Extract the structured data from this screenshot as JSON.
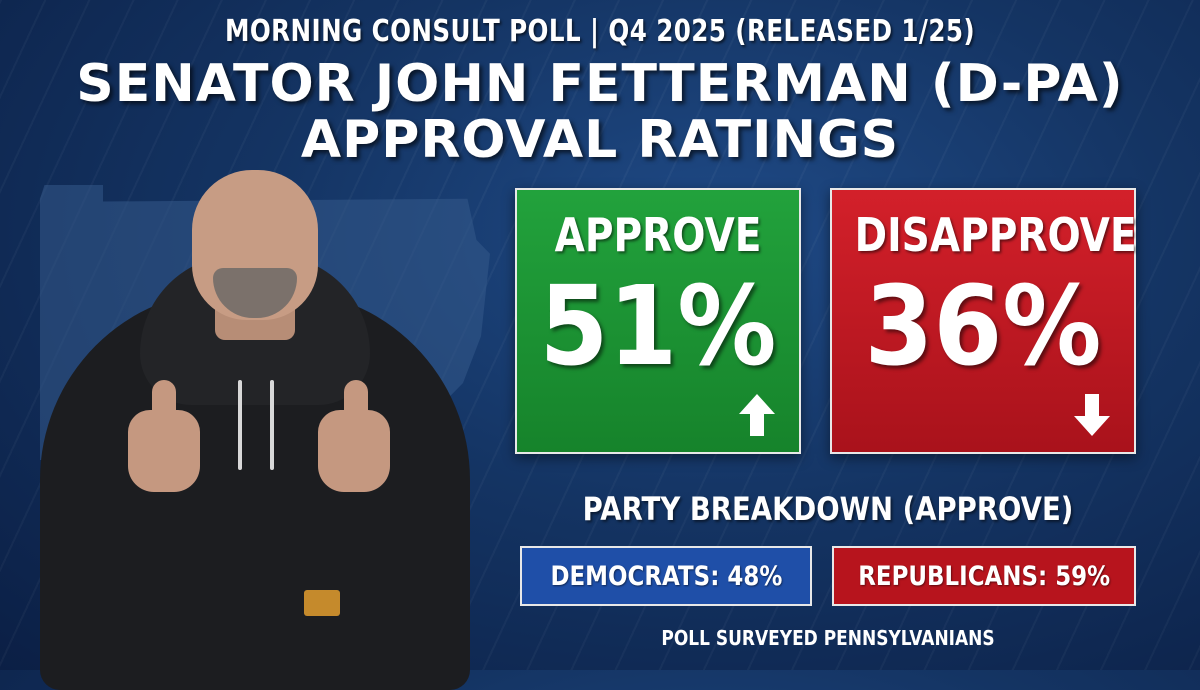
{
  "header": {
    "subtitle": "MORNING CONSULT POLL | Q4 2025 (RELEASED 1/25)",
    "title_line1": "SENATOR JOHN FETTERMAN (D-PA)",
    "title_line2": "APPROVAL RATINGS"
  },
  "approve": {
    "label": "APPROVE",
    "value": "51%",
    "trend": "up",
    "color": "#1b932f"
  },
  "disapprove": {
    "label": "DISAPPROVE",
    "value": "36%",
    "trend": "down",
    "color": "#c01a23"
  },
  "breakdown": {
    "title": "PARTY BREAKDOWN (APPROVE)",
    "democrats": "DEMOCRATS: 48%",
    "republicans": "REPUBLICANS: 59%"
  },
  "footnote": "POLL SURVEYED PENNSYLVANIANS",
  "icons": {
    "approve_trend": "arrow-up-icon",
    "disapprove_trend": "arrow-down-icon"
  }
}
